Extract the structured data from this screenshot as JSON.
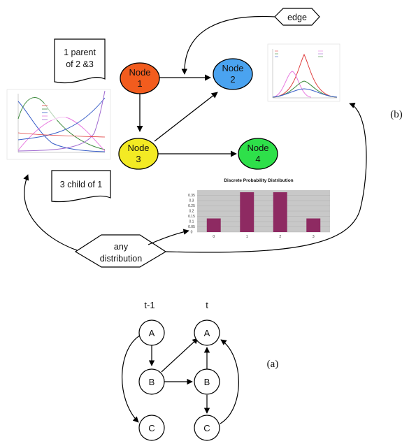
{
  "bn": {
    "nodes": [
      {
        "id": "n1",
        "line1": "Node",
        "line2": "1",
        "color": "#f25c1e"
      },
      {
        "id": "n2",
        "line1": "Node",
        "line2": "2",
        "color": "#4aa3f0"
      },
      {
        "id": "n3",
        "line1": "Node",
        "line2": "3",
        "color": "#f3ea24"
      },
      {
        "id": "n4",
        "line1": "Node",
        "line2": "4",
        "color": "#2ee04a"
      }
    ],
    "notes": {
      "parent": [
        "1 parent",
        "of 2 &3"
      ],
      "child": "3 child of 1",
      "edge": "edge",
      "any": [
        "any",
        "distribution"
      ]
    },
    "panel_label": "(b)"
  },
  "bar_chart": {
    "title": "Discrete Probability Distribution",
    "categories": [
      "0",
      "1",
      "2",
      "3"
    ],
    "values": [
      0.13,
      0.38,
      0.38,
      0.13
    ],
    "yticks": [
      "0.35",
      "0.3",
      "0.25",
      "0.2",
      "0.15",
      "0.1",
      "0.05",
      "0"
    ],
    "ylim": [
      0,
      0.4
    ],
    "bar_color": "#8e2a62"
  },
  "dbn": {
    "col_prev": "t-1",
    "col_curr": "t",
    "nodes_prev": [
      "A",
      "B",
      "C"
    ],
    "nodes_curr": [
      "A",
      "B",
      "C"
    ],
    "panel_label": "(a)"
  },
  "colors": {
    "pink": "#e879e0",
    "green": "#3c8a3c",
    "blue": "#3a5fc8",
    "purple": "#a06ad0",
    "magenta": "#d94fb8"
  }
}
